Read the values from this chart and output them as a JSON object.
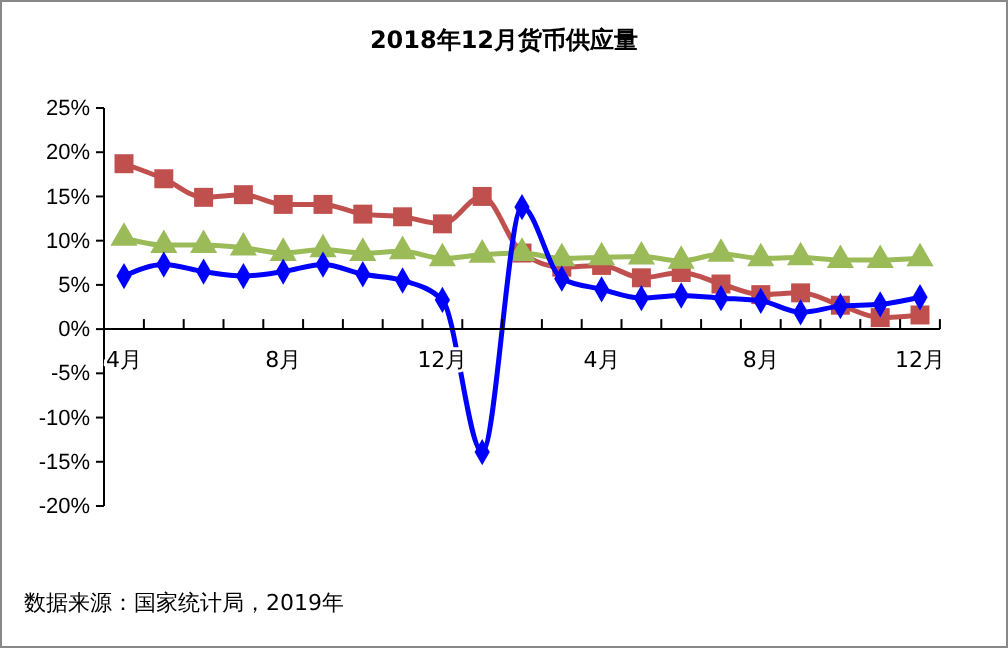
{
  "chart_data": {
    "type": "line",
    "title": "2018年12月货币供应量",
    "categories": [
      "4月",
      null,
      null,
      null,
      "8月",
      null,
      null,
      null,
      "12月",
      null,
      null,
      null,
      "4月",
      null,
      null,
      null,
      "8月",
      null,
      null,
      null,
      "12月"
    ],
    "ylim": [
      -20,
      25
    ],
    "yticks": [
      {
        "value": -20,
        "label": "-20%"
      },
      {
        "value": -15,
        "label": "-15%"
      },
      {
        "value": -10,
        "label": "-10%"
      },
      {
        "value": -5,
        "label": "-5%"
      },
      {
        "value": 0,
        "label": "0%"
      },
      {
        "value": 5,
        "label": "5%"
      },
      {
        "value": 10,
        "label": "10%"
      },
      {
        "value": 15,
        "label": "15%"
      },
      {
        "value": 20,
        "label": "20%"
      },
      {
        "value": 25,
        "label": "25%"
      }
    ],
    "grid": false,
    "series": [
      {
        "color": "#c0504d",
        "marker": "square",
        "values": [
          18.7,
          17.0,
          14.9,
          15.2,
          14.1,
          14.1,
          13.0,
          12.7,
          11.9,
          15.0,
          8.6,
          7.0,
          7.2,
          5.8,
          6.4,
          5.1,
          3.9,
          4.1,
          2.7,
          1.3,
          1.6
        ]
      },
      {
        "color": "#9bbb59",
        "marker": "triangle",
        "values": [
          10.3,
          9.5,
          9.5,
          9.2,
          8.6,
          9.0,
          8.6,
          8.8,
          8.0,
          8.4,
          8.6,
          8.0,
          8.1,
          8.2,
          7.7,
          8.5,
          8.0,
          8.1,
          7.8,
          7.8,
          8.0
        ]
      },
      {
        "color": "#0000ff",
        "marker": "diamond",
        "values": [
          6.0,
          7.3,
          6.5,
          6.0,
          6.5,
          7.3,
          6.2,
          5.5,
          3.3,
          -13.9,
          13.8,
          5.7,
          4.5,
          3.5,
          3.8,
          3.5,
          3.2,
          1.9,
          2.6,
          2.8,
          3.6
        ]
      }
    ],
    "annotations": [
      "数据来源：国家统计局，2019年"
    ]
  }
}
